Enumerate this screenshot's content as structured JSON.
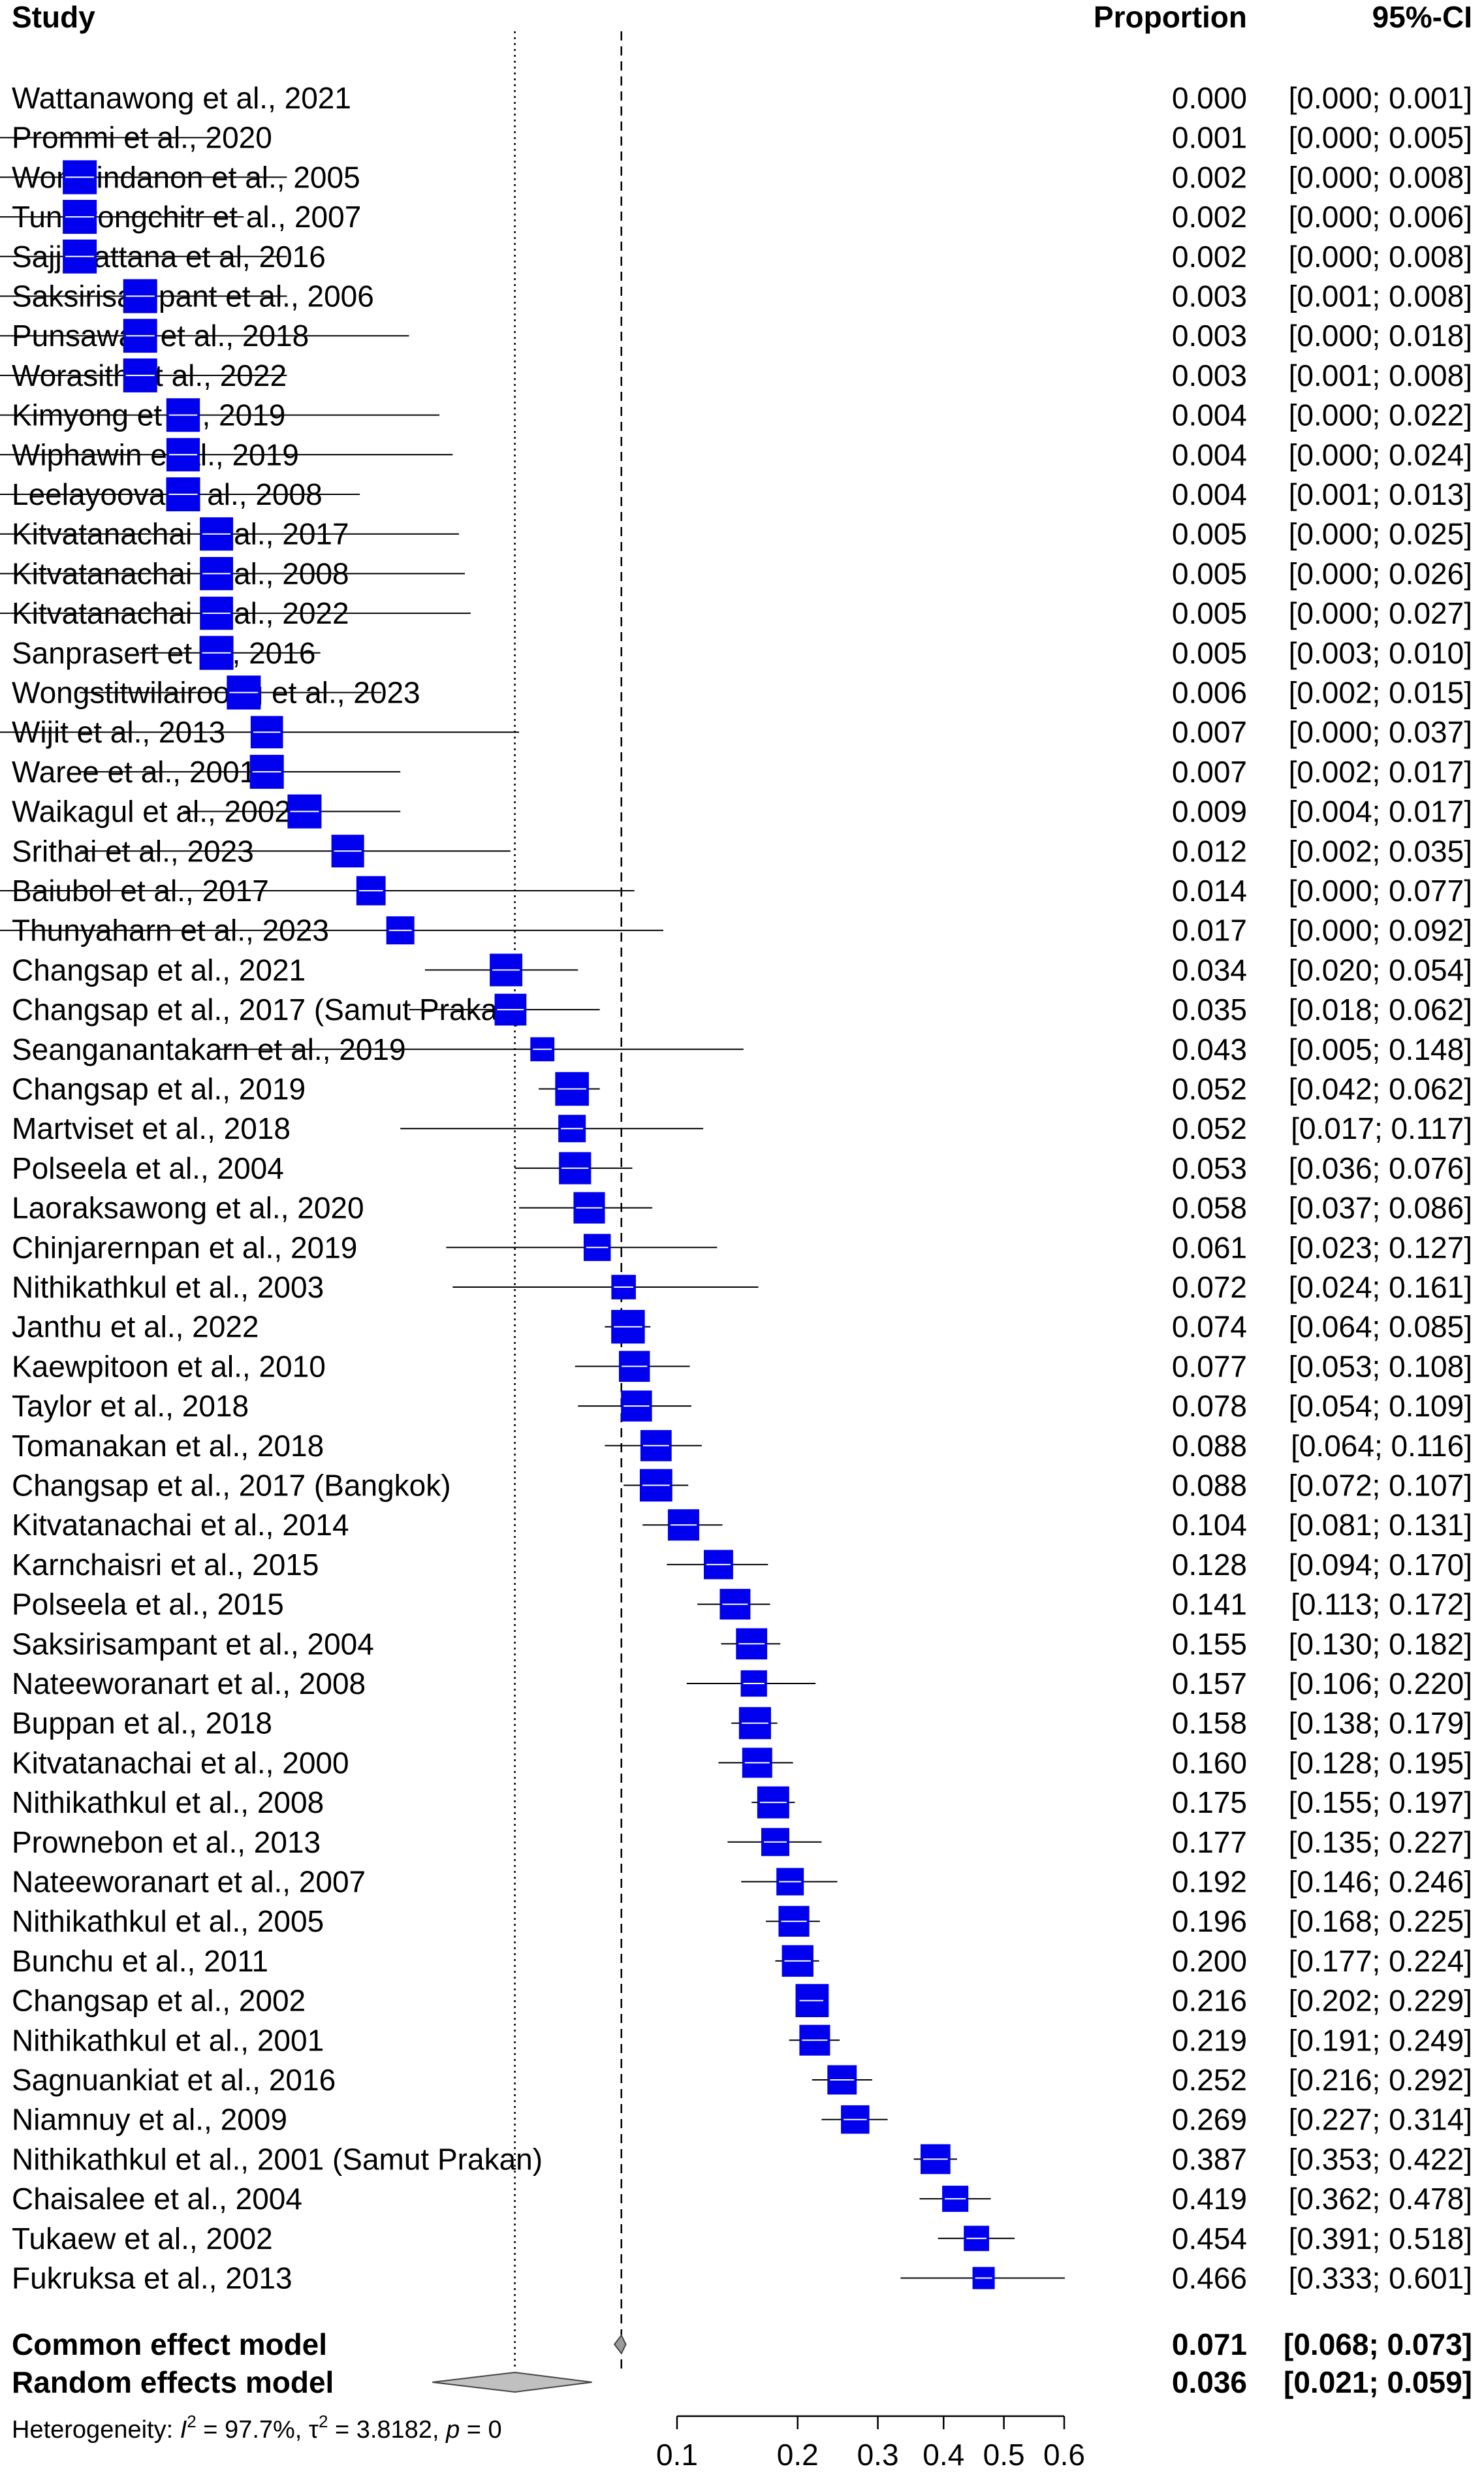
{
  "chart_data": {
    "type": "forest",
    "headers": {
      "study": "Study",
      "proportion": "Proportion",
      "ci": "95%-CI"
    },
    "studies": [
      {
        "name": "Wattanawong et al., 2021",
        "prop": 0.0,
        "lo": 0.0,
        "hi": 0.001,
        "prop_text": "0.000",
        "ci_text": "[0.000; 0.001]"
      },
      {
        "name": "Prommi et al., 2020",
        "prop": 0.001,
        "lo": 0.0,
        "hi": 0.005,
        "prop_text": "0.001",
        "ci_text": "[0.000; 0.005]"
      },
      {
        "name": "Wongjindanon et al., 2005",
        "prop": 0.002,
        "lo": 0.0,
        "hi": 0.008,
        "prop_text": "0.002",
        "ci_text": "[0.000; 0.008]"
      },
      {
        "name": "Tungtrongchitr et al., 2007",
        "prop": 0.002,
        "lo": 0.0,
        "hi": 0.006,
        "prop_text": "0.002",
        "ci_text": "[0.000; 0.006]"
      },
      {
        "name": "Sajjavattana et al, 2016",
        "prop": 0.002,
        "lo": 0.0,
        "hi": 0.008,
        "prop_text": "0.002",
        "ci_text": "[0.000; 0.008]"
      },
      {
        "name": "Saksirisampant et al., 2006",
        "prop": 0.003,
        "lo": 0.001,
        "hi": 0.008,
        "prop_text": "0.003",
        "ci_text": "[0.001; 0.008]"
      },
      {
        "name": "Punsawad et al., 2018",
        "prop": 0.003,
        "lo": 0.0,
        "hi": 0.018,
        "prop_text": "0.003",
        "ci_text": "[0.000; 0.018]"
      },
      {
        "name": "Worasith et al., 2022",
        "prop": 0.003,
        "lo": 0.001,
        "hi": 0.008,
        "prop_text": "0.003",
        "ci_text": "[0.001; 0.008]"
      },
      {
        "name": "Kimyong et al., 2019",
        "prop": 0.004,
        "lo": 0.0,
        "hi": 0.022,
        "prop_text": "0.004",
        "ci_text": "[0.000; 0.022]"
      },
      {
        "name": "Wiphawin et al., 2019",
        "prop": 0.004,
        "lo": 0.0,
        "hi": 0.024,
        "prop_text": "0.004",
        "ci_text": "[0.000; 0.024]"
      },
      {
        "name": "Leelayoova et al., 2008",
        "prop": 0.004,
        "lo": 0.001,
        "hi": 0.013,
        "prop_text": "0.004",
        "ci_text": "[0.001; 0.013]"
      },
      {
        "name": "Kitvatanachai et al., 2017",
        "prop": 0.005,
        "lo": 0.0,
        "hi": 0.025,
        "prop_text": "0.005",
        "ci_text": "[0.000; 0.025]"
      },
      {
        "name": "Kitvatanachai et al., 2008",
        "prop": 0.005,
        "lo": 0.0,
        "hi": 0.026,
        "prop_text": "0.005",
        "ci_text": "[0.000; 0.026]"
      },
      {
        "name": "Kitvatanachai et al., 2022",
        "prop": 0.005,
        "lo": 0.0,
        "hi": 0.027,
        "prop_text": "0.005",
        "ci_text": "[0.000; 0.027]"
      },
      {
        "name": "Sanprasert et al., 2016",
        "prop": 0.005,
        "lo": 0.003,
        "hi": 0.01,
        "prop_text": "0.005",
        "ci_text": "[0.003; 0.010]"
      },
      {
        "name": "Wongstitwilairoong et al., 2023",
        "prop": 0.006,
        "lo": 0.002,
        "hi": 0.015,
        "prop_text": "0.006",
        "ci_text": "[0.002; 0.015]"
      },
      {
        "name": "Wijit et al., 2013",
        "prop": 0.007,
        "lo": 0.0,
        "hi": 0.037,
        "prop_text": "0.007",
        "ci_text": "[0.000; 0.037]"
      },
      {
        "name": "Waree et al., 2001",
        "prop": 0.007,
        "lo": 0.002,
        "hi": 0.017,
        "prop_text": "0.007",
        "ci_text": "[0.002; 0.017]"
      },
      {
        "name": "Waikagul et al., 2002",
        "prop": 0.009,
        "lo": 0.004,
        "hi": 0.017,
        "prop_text": "0.009",
        "ci_text": "[0.004; 0.017]"
      },
      {
        "name": "Srithai et al., 2023",
        "prop": 0.012,
        "lo": 0.002,
        "hi": 0.035,
        "prop_text": "0.012",
        "ci_text": "[0.002; 0.035]"
      },
      {
        "name": "Baiubol et al., 2017",
        "prop": 0.014,
        "lo": 0.0,
        "hi": 0.077,
        "prop_text": "0.014",
        "ci_text": "[0.000; 0.077]"
      },
      {
        "name": "Thunyaharn et al., 2023",
        "prop": 0.017,
        "lo": 0.0,
        "hi": 0.092,
        "prop_text": "0.017",
        "ci_text": "[0.000; 0.092]"
      },
      {
        "name": "Changsap et al., 2021",
        "prop": 0.034,
        "lo": 0.02,
        "hi": 0.054,
        "prop_text": "0.034",
        "ci_text": "[0.020; 0.054]"
      },
      {
        "name": "Changsap et al., 2017 (Samut Prakan)",
        "prop": 0.035,
        "lo": 0.018,
        "hi": 0.062,
        "prop_text": "0.035",
        "ci_text": "[0.018; 0.062]"
      },
      {
        "name": "Seanganantakarn et al., 2019",
        "prop": 0.043,
        "lo": 0.005,
        "hi": 0.148,
        "prop_text": "0.043",
        "ci_text": "[0.005; 0.148]"
      },
      {
        "name": "Changsap et al., 2019",
        "prop": 0.052,
        "lo": 0.042,
        "hi": 0.062,
        "prop_text": "0.052",
        "ci_text": "[0.042; 0.062]"
      },
      {
        "name": "Martviset et al., 2018",
        "prop": 0.052,
        "lo": 0.017,
        "hi": 0.117,
        "prop_text": "0.052",
        "ci_text": "[0.017; 0.117]"
      },
      {
        "name": "Polseela et al., 2004",
        "prop": 0.053,
        "lo": 0.036,
        "hi": 0.076,
        "prop_text": "0.053",
        "ci_text": "[0.036; 0.076]"
      },
      {
        "name": "Laoraksawong et al., 2020",
        "prop": 0.058,
        "lo": 0.037,
        "hi": 0.086,
        "prop_text": "0.058",
        "ci_text": "[0.037; 0.086]"
      },
      {
        "name": "Chinjarernpan et al., 2019",
        "prop": 0.061,
        "lo": 0.023,
        "hi": 0.127,
        "prop_text": "0.061",
        "ci_text": "[0.023; 0.127]"
      },
      {
        "name": "Nithikathkul et al., 2003",
        "prop": 0.072,
        "lo": 0.024,
        "hi": 0.161,
        "prop_text": "0.072",
        "ci_text": "[0.024; 0.161]"
      },
      {
        "name": "Janthu et al., 2022",
        "prop": 0.074,
        "lo": 0.064,
        "hi": 0.085,
        "prop_text": "0.074",
        "ci_text": "[0.064; 0.085]"
      },
      {
        "name": "Kaewpitoon et al., 2010",
        "prop": 0.077,
        "lo": 0.053,
        "hi": 0.108,
        "prop_text": "0.077",
        "ci_text": "[0.053; 0.108]"
      },
      {
        "name": "Taylor et al., 2018",
        "prop": 0.078,
        "lo": 0.054,
        "hi": 0.109,
        "prop_text": "0.078",
        "ci_text": "[0.054; 0.109]"
      },
      {
        "name": "Tomanakan et al., 2018",
        "prop": 0.088,
        "lo": 0.064,
        "hi": 0.116,
        "prop_text": "0.088",
        "ci_text": "[0.064; 0.116]"
      },
      {
        "name": "Changsap et al., 2017 (Bangkok)",
        "prop": 0.088,
        "lo": 0.072,
        "hi": 0.107,
        "prop_text": "0.088",
        "ci_text": "[0.072; 0.107]"
      },
      {
        "name": "Kitvatanachai et al., 2014",
        "prop": 0.104,
        "lo": 0.081,
        "hi": 0.131,
        "prop_text": "0.104",
        "ci_text": "[0.081; 0.131]"
      },
      {
        "name": "Karnchaisri et al., 2015",
        "prop": 0.128,
        "lo": 0.094,
        "hi": 0.17,
        "prop_text": "0.128",
        "ci_text": "[0.094; 0.170]"
      },
      {
        "name": "Polseela et al., 2015",
        "prop": 0.141,
        "lo": 0.113,
        "hi": 0.172,
        "prop_text": "0.141",
        "ci_text": "[0.113; 0.172]"
      },
      {
        "name": "Saksirisampant et al., 2004",
        "prop": 0.155,
        "lo": 0.13,
        "hi": 0.182,
        "prop_text": "0.155",
        "ci_text": "[0.130; 0.182]"
      },
      {
        "name": "Nateeworanart et al., 2008",
        "prop": 0.157,
        "lo": 0.106,
        "hi": 0.22,
        "prop_text": "0.157",
        "ci_text": "[0.106; 0.220]"
      },
      {
        "name": "Buppan et al., 2018",
        "prop": 0.158,
        "lo": 0.138,
        "hi": 0.179,
        "prop_text": "0.158",
        "ci_text": "[0.138; 0.179]"
      },
      {
        "name": "Kitvatanachai et al., 2000",
        "prop": 0.16,
        "lo": 0.128,
        "hi": 0.195,
        "prop_text": "0.160",
        "ci_text": "[0.128; 0.195]"
      },
      {
        "name": "Nithikathkul et al., 2008",
        "prop": 0.175,
        "lo": 0.155,
        "hi": 0.197,
        "prop_text": "0.175",
        "ci_text": "[0.155; 0.197]"
      },
      {
        "name": "Prownebon et al., 2013",
        "prop": 0.177,
        "lo": 0.135,
        "hi": 0.227,
        "prop_text": "0.177",
        "ci_text": "[0.135; 0.227]"
      },
      {
        "name": "Nateeworanart et al., 2007",
        "prop": 0.192,
        "lo": 0.146,
        "hi": 0.246,
        "prop_text": "0.192",
        "ci_text": "[0.146; 0.246]"
      },
      {
        "name": "Nithikathkul et al., 2005",
        "prop": 0.196,
        "lo": 0.168,
        "hi": 0.225,
        "prop_text": "0.196",
        "ci_text": "[0.168; 0.225]"
      },
      {
        "name": "Bunchu et al., 2011",
        "prop": 0.2,
        "lo": 0.177,
        "hi": 0.224,
        "prop_text": "0.200",
        "ci_text": "[0.177; 0.224]"
      },
      {
        "name": "Changsap et al., 2002",
        "prop": 0.216,
        "lo": 0.202,
        "hi": 0.229,
        "prop_text": "0.216",
        "ci_text": "[0.202; 0.229]"
      },
      {
        "name": "Nithikathkul et al., 2001",
        "prop": 0.219,
        "lo": 0.191,
        "hi": 0.249,
        "prop_text": "0.219",
        "ci_text": "[0.191; 0.249]"
      },
      {
        "name": "Sagnuankiat et al., 2016",
        "prop": 0.252,
        "lo": 0.216,
        "hi": 0.292,
        "prop_text": "0.252",
        "ci_text": "[0.216; 0.292]"
      },
      {
        "name": "Niamnuy et al., 2009",
        "prop": 0.269,
        "lo": 0.227,
        "hi": 0.314,
        "prop_text": "0.269",
        "ci_text": "[0.227; 0.314]"
      },
      {
        "name": "Nithikathkul et al., 2001 (Samut Prakan)",
        "prop": 0.387,
        "lo": 0.353,
        "hi": 0.422,
        "prop_text": "0.387",
        "ci_text": "[0.353; 0.422]"
      },
      {
        "name": "Chaisalee et al., 2004",
        "prop": 0.419,
        "lo": 0.362,
        "hi": 0.478,
        "prop_text": "0.419",
        "ci_text": "[0.362; 0.478]"
      },
      {
        "name": "Tukaew et al., 2002",
        "prop": 0.454,
        "lo": 0.391,
        "hi": 0.518,
        "prop_text": "0.454",
        "ci_text": "[0.391; 0.518]"
      },
      {
        "name": "Fukruksa et al., 2013",
        "prop": 0.466,
        "lo": 0.333,
        "hi": 0.601,
        "prop_text": "0.466",
        "ci_text": "[0.333; 0.601]"
      }
    ],
    "pooled": [
      {
        "name": "Common effect model",
        "prop": 0.071,
        "lo": 0.068,
        "hi": 0.073,
        "prop_text": "0.071",
        "ci_text": "[0.068; 0.073]"
      },
      {
        "name": "Random effects model",
        "prop": 0.036,
        "lo": 0.021,
        "hi": 0.059,
        "prop_text": "0.036",
        "ci_text": "[0.021; 0.059]"
      }
    ],
    "heterogeneity": {
      "prefix": "Heterogeneity: ",
      "i2_symbol": "I",
      "i2_value": " = 97.7%, ",
      "tau2_symbol": "τ",
      "tau2_value": " = 3.8182, ",
      "p_symbol": "p",
      "p_value": " = 0"
    },
    "x_scale": "logit",
    "x_ticks": [
      0.1,
      0.2,
      0.3,
      0.4,
      0.5,
      0.6
    ],
    "x_tick_labels": [
      "0.1",
      "0.2",
      "0.3",
      "0.4",
      "0.5",
      "0.6"
    ],
    "colors": {
      "box": "#0000ee",
      "diamond": "#c0c0c0",
      "line": "#000000"
    }
  }
}
